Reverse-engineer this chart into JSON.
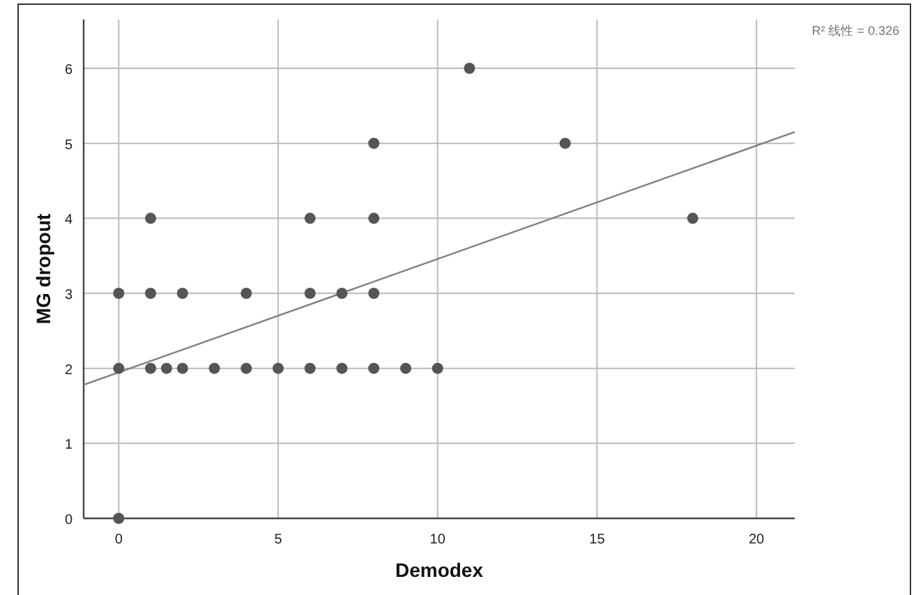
{
  "chart_data": {
    "type": "scatter",
    "xlabel": "Demodex",
    "ylabel": "MG dropout",
    "xlim": [
      -1.1,
      21.2
    ],
    "ylim": [
      0,
      6.65
    ],
    "xticks": [
      0,
      5,
      10,
      15,
      20
    ],
    "yticks": [
      0,
      1,
      2,
      3,
      4,
      5,
      6
    ],
    "grid": true,
    "annotations": [
      "R² 线性 = 0.326"
    ],
    "series": [
      {
        "marker": "circle",
        "color": "#555555",
        "x": [
          0,
          1,
          1.5,
          2,
          3,
          4,
          5,
          6,
          7,
          8,
          9,
          10,
          0,
          1,
          2,
          4,
          6,
          7,
          8,
          1,
          6,
          8,
          18,
          8,
          14,
          11,
          0
        ],
        "values": [
          2,
          2,
          2,
          2,
          2,
          2,
          2,
          2,
          2,
          2,
          2,
          2,
          3,
          3,
          3,
          3,
          3,
          3,
          3,
          4,
          4,
          4,
          4,
          5,
          5,
          6,
          0
        ]
      },
      {
        "type": "line",
        "color": "#808080",
        "x": [
          -1.1,
          21.2
        ],
        "values": [
          1.78,
          5.15
        ]
      }
    ]
  }
}
